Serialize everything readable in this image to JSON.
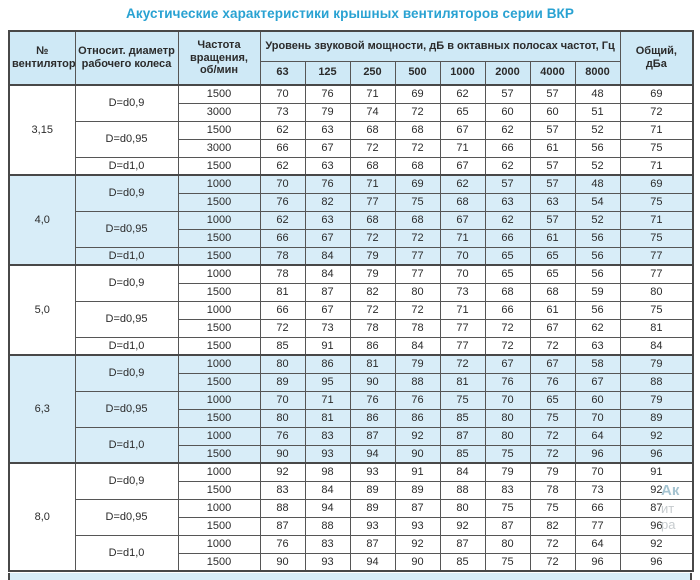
{
  "title": "Акустические характеристики крышных вентиляторов серии ВКР",
  "colors": {
    "title": "#29a2d2",
    "header_bg": "#cfe9f6",
    "shaded_row_bg": "#d8edf8",
    "border": "#484848"
  },
  "table": {
    "headers": {
      "fan": "№\nвентилятора",
      "diameter": "Относит. диаметр\nрабочего колеса",
      "speed": "Частота\nвращения,\nоб/мин",
      "level_group": "Уровень звуковой мощности, дБ в октавных полосах частот, Гц",
      "freqs": [
        "63",
        "125",
        "250",
        "500",
        "1000",
        "2000",
        "4000",
        "8000"
      ],
      "total": "Общий,\nдБа"
    },
    "groups": [
      {
        "fan": "3,15",
        "shaded": false,
        "subgroups": [
          {
            "diameter": "D=d0,9",
            "rows": [
              {
                "speed": "1500",
                "values": [
                  70,
                  76,
                  71,
                  69,
                  62,
                  57,
                  57,
                  48
                ],
                "total": 69
              },
              {
                "speed": "3000",
                "values": [
                  73,
                  79,
                  74,
                  72,
                  65,
                  60,
                  60,
                  51
                ],
                "total": 72
              }
            ]
          },
          {
            "diameter": "D=d0,95",
            "rows": [
              {
                "speed": "1500",
                "values": [
                  62,
                  63,
                  68,
                  68,
                  67,
                  62,
                  57,
                  52
                ],
                "total": 71
              },
              {
                "speed": "3000",
                "values": [
                  66,
                  67,
                  72,
                  72,
                  71,
                  66,
                  61,
                  56
                ],
                "total": 75
              }
            ]
          },
          {
            "diameter": "D=d1,0",
            "rows": [
              {
                "speed": "1500",
                "values": [
                  62,
                  63,
                  68,
                  68,
                  67,
                  62,
                  57,
                  52
                ],
                "total": 71
              }
            ]
          }
        ]
      },
      {
        "fan": "4,0",
        "shaded": true,
        "subgroups": [
          {
            "diameter": "D=d0,9",
            "rows": [
              {
                "speed": "1000",
                "values": [
                  70,
                  76,
                  71,
                  69,
                  62,
                  57,
                  57,
                  48
                ],
                "total": 69
              },
              {
                "speed": "1500",
                "values": [
                  76,
                  82,
                  77,
                  75,
                  68,
                  63,
                  63,
                  54
                ],
                "total": 75
              }
            ]
          },
          {
            "diameter": "D=d0,95",
            "rows": [
              {
                "speed": "1000",
                "values": [
                  62,
                  63,
                  68,
                  68,
                  67,
                  62,
                  57,
                  52
                ],
                "total": 71
              },
              {
                "speed": "1500",
                "values": [
                  66,
                  67,
                  72,
                  72,
                  71,
                  66,
                  61,
                  56
                ],
                "total": 75
              }
            ]
          },
          {
            "diameter": "D=d1,0",
            "rows": [
              {
                "speed": "1500",
                "values": [
                  78,
                  84,
                  79,
                  77,
                  70,
                  65,
                  65,
                  56
                ],
                "total": 77
              }
            ]
          }
        ]
      },
      {
        "fan": "5,0",
        "shaded": false,
        "subgroups": [
          {
            "diameter": "D=d0,9",
            "rows": [
              {
                "speed": "1000",
                "values": [
                  78,
                  84,
                  79,
                  77,
                  70,
                  65,
                  65,
                  56
                ],
                "total": 77
              },
              {
                "speed": "1500",
                "values": [
                  81,
                  87,
                  82,
                  80,
                  73,
                  68,
                  68,
                  59
                ],
                "total": 80
              }
            ]
          },
          {
            "diameter": "D=d0,95",
            "rows": [
              {
                "speed": "1000",
                "values": [
                  66,
                  67,
                  72,
                  72,
                  71,
                  66,
                  61,
                  56
                ],
                "total": 75
              },
              {
                "speed": "1500",
                "values": [
                  72,
                  73,
                  78,
                  78,
                  77,
                  72,
                  67,
                  62
                ],
                "total": 81
              }
            ]
          },
          {
            "diameter": "D=d1,0",
            "rows": [
              {
                "speed": "1500",
                "values": [
                  85,
                  91,
                  86,
                  84,
                  77,
                  72,
                  72,
                  63
                ],
                "total": 84
              }
            ]
          }
        ]
      },
      {
        "fan": "6,3",
        "shaded": true,
        "subgroups": [
          {
            "diameter": "D=d0,9",
            "rows": [
              {
                "speed": "1000",
                "values": [
                  80,
                  86,
                  81,
                  79,
                  72,
                  67,
                  67,
                  58
                ],
                "total": 79
              },
              {
                "speed": "1500",
                "values": [
                  89,
                  95,
                  90,
                  88,
                  81,
                  76,
                  76,
                  67
                ],
                "total": 88
              }
            ]
          },
          {
            "diameter": "D=d0,95",
            "rows": [
              {
                "speed": "1000",
                "values": [
                  70,
                  71,
                  76,
                  76,
                  75,
                  70,
                  65,
                  60
                ],
                "total": 79
              },
              {
                "speed": "1500",
                "values": [
                  80,
                  81,
                  86,
                  86,
                  85,
                  80,
                  75,
                  70
                ],
                "total": 89
              }
            ]
          },
          {
            "diameter": "D=d1,0",
            "rows": [
              {
                "speed": "1000",
                "values": [
                  76,
                  83,
                  87,
                  92,
                  87,
                  80,
                  72,
                  64
                ],
                "total": 92
              },
              {
                "speed": "1500",
                "values": [
                  90,
                  93,
                  94,
                  90,
                  85,
                  75,
                  72,
                  96
                ],
                "total": 96
              }
            ]
          }
        ]
      },
      {
        "fan": "8,0",
        "shaded": false,
        "subgroups": [
          {
            "diameter": "D=d0,9",
            "rows": [
              {
                "speed": "1000",
                "values": [
                  92,
                  98,
                  93,
                  91,
                  84,
                  79,
                  79,
                  70
                ],
                "total": 91
              },
              {
                "speed": "1500",
                "values": [
                  83,
                  84,
                  89,
                  89,
                  88,
                  83,
                  78,
                  73
                ],
                "total": 92
              }
            ]
          },
          {
            "diameter": "D=d0,95",
            "rows": [
              {
                "speed": "1000",
                "values": [
                  88,
                  94,
                  89,
                  87,
                  80,
                  75,
                  75,
                  66
                ],
                "total": 87
              },
              {
                "speed": "1500",
                "values": [
                  87,
                  88,
                  93,
                  93,
                  92,
                  87,
                  82,
                  77
                ],
                "total": 96
              }
            ]
          },
          {
            "diameter": "D=d1,0",
            "rows": [
              {
                "speed": "1000",
                "values": [
                  76,
                  83,
                  87,
                  92,
                  87,
                  80,
                  72,
                  64
                ],
                "total": 92
              },
              {
                "speed": "1500",
                "values": [
                  90,
                  93,
                  94,
                  90,
                  85,
                  75,
                  72,
                  96
                ],
                "total": 96
              }
            ]
          }
        ]
      }
    ]
  },
  "watermark": {
    "line1": "Ак",
    "line2": "ит",
    "line3": "ра"
  }
}
